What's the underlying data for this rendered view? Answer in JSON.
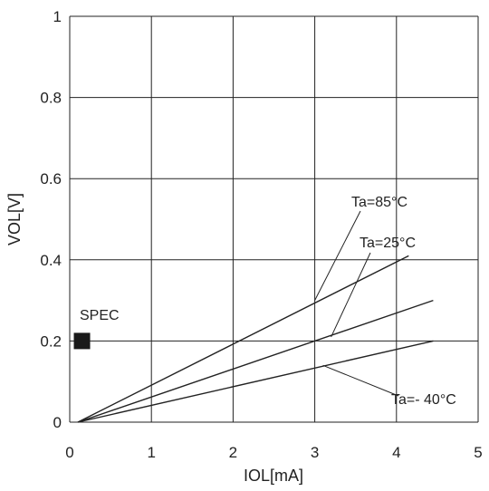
{
  "chart_data": {
    "type": "line",
    "xlabel": "IOL[mA]",
    "ylabel": "VOL[V]",
    "xlim": [
      0,
      5
    ],
    "ylim": [
      0,
      1
    ],
    "x_ticks": [
      "0",
      "1",
      "2",
      "3",
      "4",
      "5"
    ],
    "y_ticks": [
      "0",
      "0.2",
      "0.4",
      "0.6",
      "0.8",
      "1"
    ],
    "grid": true,
    "series": [
      {
        "name": "Ta=85°C",
        "x": [
          0.1,
          4.15
        ],
        "y": [
          0.0,
          0.41
        ]
      },
      {
        "name": "Ta=25°C",
        "x": [
          0.1,
          4.45
        ],
        "y": [
          0.0,
          0.3
        ]
      },
      {
        "name": "Ta=-40°C",
        "x": [
          0.1,
          4.45
        ],
        "y": [
          0.0,
          0.2
        ]
      }
    ],
    "annotations": [
      {
        "text": "Ta=85°C",
        "series": 0,
        "leader_to": [
          3.0,
          0.3
        ]
      },
      {
        "text": "Ta=25°C",
        "series": 1,
        "leader_to": [
          3.2,
          0.21
        ]
      },
      {
        "text": "Ta=- 40°C",
        "series": 2,
        "leader_to": [
          3.1,
          0.14
        ]
      }
    ],
    "spec_marker": {
      "label": "SPEC",
      "x": 0.15,
      "y": 0.2
    },
    "colors": {
      "line": "#222222",
      "grid": "#222222",
      "spec": "#1a1a1a"
    }
  }
}
